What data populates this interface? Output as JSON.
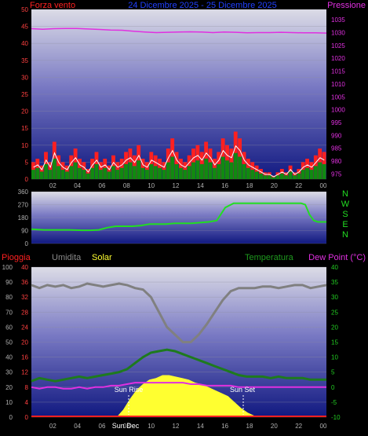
{
  "colors": {
    "wind": "#ff2020",
    "wind_avg": "#108a10",
    "gust_line": "#ffffff",
    "pressure": "#e030e0",
    "direction": "#22dd22",
    "rain": "#ff2020",
    "humidity": "#808080",
    "solar": "#ffff30",
    "temperature": "#1e7a1e",
    "dew_point": "#e030e0",
    "header_blue": "#2040ff",
    "axis_label_grey": "#b0b0b0"
  },
  "header": {
    "wind_label": "Forza vento",
    "date_range": "24 Dicembre 2025 - 25 Dicembre 2025",
    "pressure_label": "Pressione"
  },
  "dir_axis_letters": [
    "N",
    "W",
    "S",
    "E",
    "N"
  ],
  "lower_header": {
    "rain_label": "Pioggia",
    "humidity_label": "Umidita",
    "solar_label": "Solar",
    "temperature_label": "Temperatura",
    "dew_label": "Dew Point (°C)"
  },
  "annotations": {
    "sun_rise": "Sun Rise",
    "sun_set": "Sun Set",
    "sun_dec": "Sun Dec"
  },
  "chart_data": [
    {
      "type": "bar",
      "name": "wind",
      "x_ticks": [
        "02",
        "04",
        "06",
        "08",
        "10",
        "12",
        "14",
        "16",
        "18",
        "20",
        "22",
        "00"
      ],
      "y_left_ticks": [
        0,
        5,
        10,
        15,
        20,
        25,
        30,
        35,
        40,
        45,
        50
      ],
      "ylim_left": [
        0,
        50
      ],
      "y_right_ticks": [
        975,
        980,
        985,
        990,
        995,
        1000,
        1005,
        1010,
        1015,
        1020,
        1025,
        1030,
        1035
      ],
      "ylim_right": [
        973,
        1039
      ],
      "series": [
        {
          "name": "Forza vento",
          "values": [
            5,
            6,
            4,
            8,
            5,
            11,
            7,
            5,
            4,
            7,
            9,
            6,
            5,
            3,
            6,
            8,
            5,
            6,
            4,
            7,
            5,
            6,
            8,
            9,
            7,
            10,
            6,
            5,
            8,
            7,
            6,
            5,
            9,
            12,
            8,
            6,
            5,
            7,
            9,
            10,
            8,
            11,
            9,
            6,
            8,
            12,
            10,
            9,
            14,
            12,
            8,
            6,
            5,
            4,
            3,
            2,
            2,
            1,
            2,
            3,
            2,
            4,
            2,
            3,
            5,
            6,
            5,
            7,
            9,
            8
          ]
        },
        {
          "name": "Pressione",
          "values": [
            1031.5,
            1031.3,
            1031.5,
            1031.6,
            1031.6,
            1031.4,
            1031.2,
            1031.0,
            1030.9,
            1030.5,
            1030.2,
            1030.0,
            1030.1,
            1030.2,
            1030.3,
            1030.2,
            1030.0,
            1030.2,
            1030.1,
            1029.9,
            1030.0,
            1030.0,
            1030.1,
            1030.0,
            1029.9,
            1029.9,
            1029.8
          ]
        }
      ]
    },
    {
      "type": "line",
      "name": "direction",
      "y_ticks": [
        0,
        90,
        180,
        270,
        360
      ],
      "ylim": [
        0,
        360
      ],
      "x": [
        0,
        3,
        6,
        9,
        12,
        14,
        16,
        18,
        20,
        22,
        24,
        26,
        27,
        28,
        30,
        32,
        34,
        36,
        38,
        40,
        42,
        44,
        46,
        48,
        50,
        52,
        54,
        56,
        58,
        60,
        62,
        64,
        65,
        66,
        67,
        68,
        70
      ],
      "values": [
        100,
        95,
        95,
        95,
        92,
        92,
        95,
        110,
        120,
        120,
        120,
        125,
        130,
        135,
        135,
        135,
        140,
        140,
        140,
        145,
        150,
        160,
        250,
        280,
        280,
        280,
        280,
        280,
        280,
        280,
        280,
        280,
        270,
        200,
        160,
        150,
        150
      ]
    },
    {
      "type": "line",
      "name": "temperature",
      "y_left_ticks": [
        0,
        10,
        20,
        30,
        40,
        50,
        60,
        70,
        80,
        90,
        100
      ],
      "ylim_left": [
        0,
        100
      ],
      "y_right_ticks": [
        -10,
        -5,
        0,
        5,
        10,
        15,
        20,
        25,
        30,
        35,
        40
      ],
      "ylim_right": [
        -10,
        40
      ],
      "series": [
        {
          "name": "Umidita",
          "values": [
            88,
            86,
            88,
            87,
            88,
            86,
            87,
            89,
            88,
            87,
            88,
            89,
            88,
            86,
            85,
            80,
            70,
            60,
            55,
            50,
            50,
            55,
            62,
            70,
            78,
            84,
            86,
            86,
            86,
            87,
            87,
            86,
            87,
            88,
            88,
            86,
            87,
            88
          ]
        },
        {
          "name": "Temperatura",
          "values": [
            2,
            3,
            2.5,
            2,
            2.5,
            3,
            3.5,
            3,
            3.5,
            4,
            4.5,
            5,
            6,
            8,
            10,
            11.5,
            12,
            12.5,
            12,
            11,
            10,
            9,
            8,
            7,
            6,
            5,
            4,
            3.5,
            3.5,
            3.5,
            3,
            3.5,
            3,
            3,
            3,
            2.5,
            2.5,
            2.5
          ]
        },
        {
          "name": "Dew Point (°C)",
          "values": [
            0,
            -0.5,
            0,
            0,
            -0.5,
            -0.5,
            0,
            -0.5,
            0,
            0,
            0.5,
            0.5,
            1,
            1.5,
            1.5,
            1.5,
            1.5,
            1.5,
            1.5,
            1.5,
            1,
            1,
            0.5,
            0.5,
            0.5,
            0.5,
            0,
            0,
            0,
            0,
            0,
            0,
            0,
            0,
            0,
            0,
            0,
            0
          ]
        },
        {
          "name": "Solar",
          "values": [
            0,
            0,
            0,
            0,
            0,
            0,
            0,
            0,
            0,
            0,
            0,
            0,
            0,
            0,
            5,
            12,
            18,
            22,
            25,
            26,
            28,
            28,
            27,
            26,
            25,
            23,
            22,
            20,
            18,
            16,
            14,
            10,
            6,
            3,
            1,
            0,
            0,
            0,
            0,
            0,
            0,
            0,
            0,
            0,
            0,
            0
          ]
        },
        {
          "name": "Pioggia",
          "values": [
            0,
            0,
            0,
            0,
            0,
            0,
            0,
            0,
            0,
            0,
            0,
            0,
            0,
            0,
            0,
            0,
            0,
            0,
            0,
            0,
            0,
            0,
            0,
            0,
            0,
            0,
            0,
            0,
            0,
            0,
            0,
            0,
            0,
            0,
            0,
            0,
            0,
            0
          ]
        }
      ]
    }
  ]
}
